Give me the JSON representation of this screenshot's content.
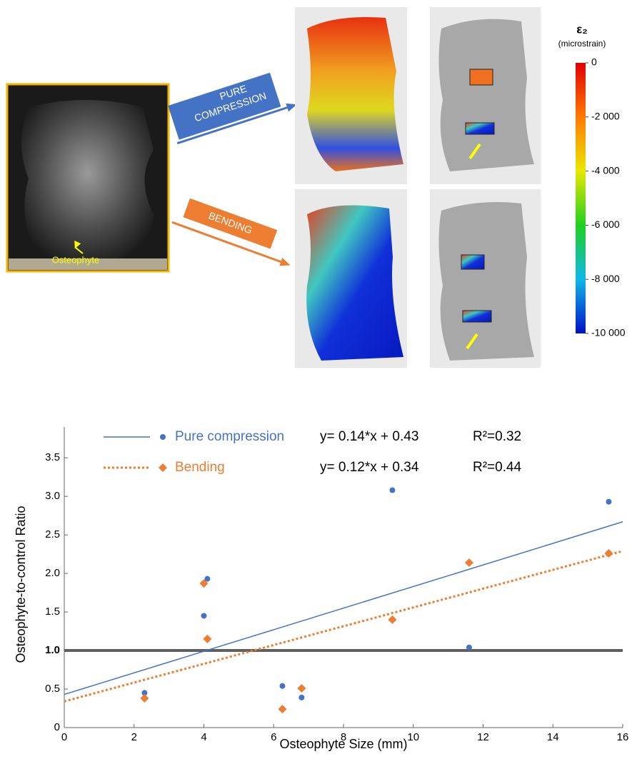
{
  "figure": {
    "photo_label": "Osteophyte",
    "arrow_top": [
      "PURE",
      "COMPRESSION"
    ],
    "arrow_bottom": "BENDING",
    "colorbar": {
      "title": "ε₂",
      "unit": "(microstrain)",
      "lim": [
        -10000,
        0
      ],
      "ticks": [
        {
          "value": 0,
          "label": "0"
        },
        {
          "value": -2000,
          "label": "-2 000"
        },
        {
          "value": -4000,
          "label": "-4 000"
        },
        {
          "value": -6000,
          "label": "-6 000"
        },
        {
          "value": -8000,
          "label": "-8 000"
        },
        {
          "value": -10000,
          "label": "-10 000"
        }
      ]
    }
  },
  "chart_data": {
    "type": "scatter",
    "xlabel": "Osteophyte Size (mm)",
    "ylabel": "Osteophyte-to-control Ratio",
    "xlim": [
      0,
      16
    ],
    "ylim": [
      0,
      3.9
    ],
    "xticks": [
      0,
      2,
      4,
      6,
      8,
      10,
      12,
      14,
      16
    ],
    "yticks": [
      0,
      0.5,
      {
        "value": 1,
        "label": "1.0"
      },
      1.5,
      {
        "value": 2,
        "label": "2.0"
      },
      2.5,
      {
        "value": 3,
        "label": "3.0"
      },
      3.5
    ],
    "reference_line": 1,
    "series": [
      {
        "name": "Pure compression",
        "color": "#4472c4",
        "marker": "circle",
        "x": [
          2.3,
          4.0,
          4.1,
          6.25,
          6.8,
          9.4,
          11.6,
          15.6
        ],
        "values": [
          0.45,
          1.45,
          1.93,
          0.54,
          0.39,
          3.08,
          1.04,
          2.93
        ],
        "fit": {
          "x": [
            0,
            16
          ],
          "values": [
            0.43,
            2.67
          ],
          "equation": "y= 0.14*x + 0.43",
          "r2": "R²=0.32"
        }
      },
      {
        "name": "Bending",
        "color": "#ed7d31",
        "marker": "diamond",
        "x": [
          2.3,
          4.0,
          4.1,
          6.25,
          6.8,
          9.4,
          11.6,
          15.6
        ],
        "values": [
          0.38,
          1.87,
          1.15,
          0.24,
          0.51,
          1.4,
          2.14,
          2.26
        ],
        "fit": {
          "x": [
            0,
            16
          ],
          "values": [
            0.34,
            2.29
          ],
          "equation": "y= 0.12*x + 0.34",
          "r2": "R²=0.44"
        }
      }
    ]
  }
}
